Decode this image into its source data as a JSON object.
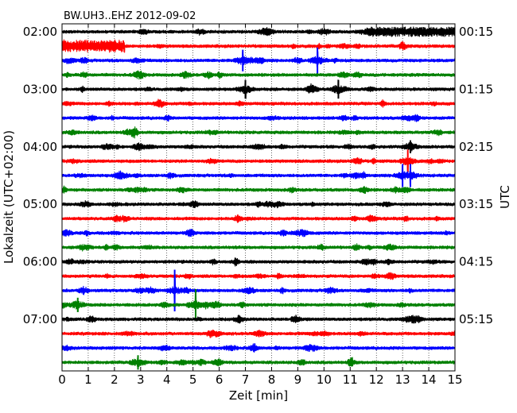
{
  "chart_data": {
    "type": "line",
    "chart_kind": "dayplot-seismogram",
    "title": "BW.UH3..EHZ 2012-09-02",
    "xlabel": "Zeit  [min]",
    "ylabel_left": "Lokalzeit (UTC+02:00)",
    "ylabel_right": "UTC",
    "xlim": [
      0,
      15
    ],
    "x_ticks": [
      0,
      1,
      2,
      3,
      4,
      5,
      6,
      7,
      8,
      9,
      10,
      11,
      12,
      13,
      14,
      15
    ],
    "x_tick_labels": [
      "0",
      "1",
      "2",
      "3",
      "4",
      "5",
      "6",
      "7",
      "8",
      "9",
      "10",
      "11",
      "12",
      "13",
      "14",
      "15"
    ],
    "vertical_grid": "dotted, every minute",
    "trace_colors": [
      "#000000",
      "#ff0000",
      "#0000ff",
      "#008000"
    ],
    "trace_interval_minutes": 15,
    "traces_count": 24,
    "left_time_labels": [
      "02:00",
      "03:00",
      "04:00",
      "05:00",
      "06:00",
      "07:00"
    ],
    "right_time_labels": [
      "00:15",
      "01:15",
      "02:15",
      "03:15",
      "04:15",
      "05:15"
    ],
    "left_label_trace_index": [
      0,
      4,
      8,
      12,
      16,
      20
    ],
    "right_label_trace_index": [
      0,
      4,
      8,
      12,
      16,
      20
    ],
    "events": [
      {
        "trace": 0,
        "start": 11.2,
        "end": 15.0,
        "amplitude": 0.55,
        "type": "sustained"
      },
      {
        "trace": 1,
        "start": 0.0,
        "end": 2.4,
        "amplitude": 0.75,
        "type": "sustained"
      },
      {
        "trace": 0,
        "time": 7.8,
        "amplitude": 0.5,
        "type": "spike"
      },
      {
        "trace": 2,
        "time": 6.9,
        "amplitude": 1.5,
        "type": "spike"
      },
      {
        "trace": 2,
        "time": 9.75,
        "amplitude": 1.8,
        "type": "spike"
      },
      {
        "trace": 4,
        "time": 7.0,
        "amplitude": 1.3,
        "type": "spike"
      },
      {
        "trace": 4,
        "time": 10.55,
        "amplitude": 1.3,
        "type": "spike"
      },
      {
        "trace": 8,
        "time": 13.3,
        "amplitude": 0.9,
        "type": "spike"
      },
      {
        "trace": 9,
        "time": 13.2,
        "amplitude": 1.6,
        "type": "spike"
      },
      {
        "trace": 10,
        "time": 13.0,
        "amplitude": 1.6,
        "type": "spike"
      },
      {
        "trace": 10,
        "time": 13.3,
        "amplitude": 1.6,
        "type": "spike"
      },
      {
        "trace": 18,
        "time": 4.3,
        "amplitude": 2.9,
        "type": "spike"
      },
      {
        "trace": 19,
        "time": 5.1,
        "amplitude": 2.2,
        "type": "spike"
      },
      {
        "trace": 19,
        "time": 0.6,
        "amplitude": 1.0,
        "type": "spike"
      },
      {
        "trace": 23,
        "time": 2.9,
        "amplitude": 1.0,
        "type": "spike"
      }
    ]
  }
}
